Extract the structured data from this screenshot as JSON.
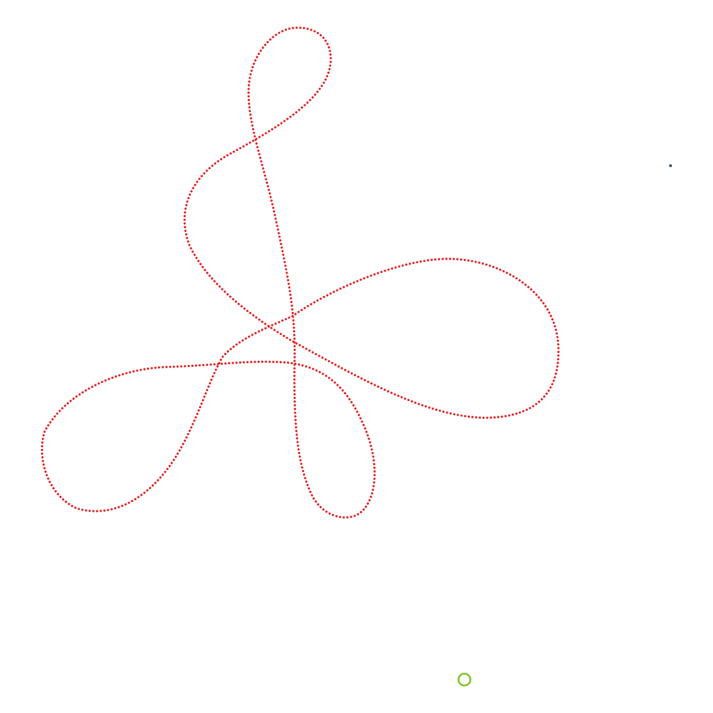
{
  "colors": {
    "background": "#ffffff",
    "curve": "#e32222",
    "ring": "#7cc228",
    "dot": "#2f4f6f"
  },
  "curve": {
    "style": "dotted",
    "shape": "knot"
  },
  "ring_marker": {
    "shape": "circle-outline"
  },
  "dot_marker": {
    "shape": "dot"
  }
}
